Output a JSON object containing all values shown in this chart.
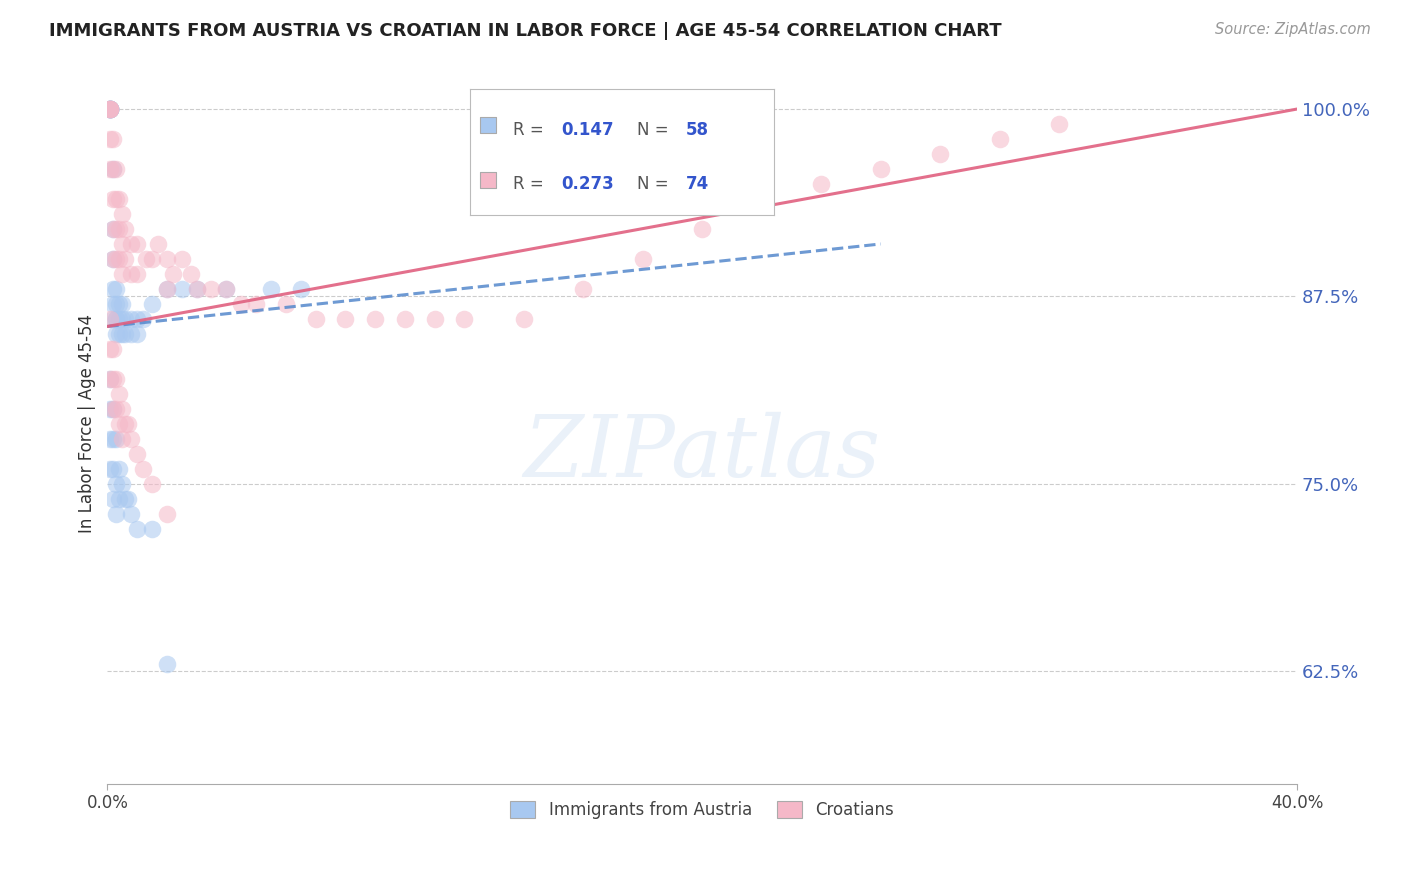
{
  "title": "IMMIGRANTS FROM AUSTRIA VS CROATIAN IN LABOR FORCE | AGE 45-54 CORRELATION CHART",
  "source": "Source: ZipAtlas.com",
  "ylabel": "In Labor Force | Age 45-54",
  "xlim": [
    0.0,
    0.4
  ],
  "ylim": [
    0.55,
    1.03
  ],
  "ytick_vals": [
    0.625,
    0.75,
    0.875,
    1.0
  ],
  "ytick_labels": [
    "62.5%",
    "75.0%",
    "87.5%",
    "100.0%"
  ],
  "xtick_vals": [
    0.0,
    0.4
  ],
  "xtick_labels": [
    "0.0%",
    "40.0%"
  ],
  "grid_color": "#cccccc",
  "background_color": "#ffffff",
  "austria_color": "#a8c8f0",
  "croatian_color": "#f5b8c8",
  "austria_line_color": "#5588cc",
  "croatian_line_color": "#e06080",
  "austria_R": 0.147,
  "austria_N": 58,
  "croatian_R": 0.273,
  "croatian_N": 74,
  "legend_label_austria": "Immigrants from Austria",
  "legend_label_croatian": "Croatians",
  "watermark_text": "ZIPatlas",
  "austria_x": [
    0.001,
    0.001,
    0.001,
    0.001,
    0.001,
    0.001,
    0.001,
    0.001,
    0.002,
    0.002,
    0.002,
    0.002,
    0.002,
    0.002,
    0.003,
    0.003,
    0.003,
    0.003,
    0.003,
    0.004,
    0.004,
    0.004,
    0.005,
    0.005,
    0.005,
    0.006,
    0.006,
    0.008,
    0.008,
    0.01,
    0.01,
    0.012,
    0.015,
    0.02,
    0.025,
    0.03,
    0.04,
    0.055,
    0.065,
    0.001,
    0.001,
    0.001,
    0.001,
    0.002,
    0.002,
    0.002,
    0.002,
    0.003,
    0.003,
    0.003,
    0.004,
    0.004,
    0.005,
    0.006,
    0.007,
    0.008,
    0.01,
    0.015,
    0.02
  ],
  "austria_y": [
    1.0,
    1.0,
    1.0,
    1.0,
    1.0,
    1.0,
    1.0,
    1.0,
    0.96,
    0.92,
    0.9,
    0.88,
    0.87,
    0.86,
    0.88,
    0.87,
    0.86,
    0.86,
    0.85,
    0.87,
    0.86,
    0.85,
    0.87,
    0.86,
    0.85,
    0.86,
    0.85,
    0.86,
    0.85,
    0.86,
    0.85,
    0.86,
    0.87,
    0.88,
    0.88,
    0.88,
    0.88,
    0.88,
    0.88,
    0.82,
    0.8,
    0.78,
    0.76,
    0.8,
    0.78,
    0.76,
    0.74,
    0.78,
    0.75,
    0.73,
    0.76,
    0.74,
    0.75,
    0.74,
    0.74,
    0.73,
    0.72,
    0.72,
    0.63
  ],
  "croatian_x": [
    0.001,
    0.001,
    0.001,
    0.001,
    0.001,
    0.001,
    0.002,
    0.002,
    0.002,
    0.002,
    0.002,
    0.003,
    0.003,
    0.003,
    0.003,
    0.004,
    0.004,
    0.004,
    0.005,
    0.005,
    0.005,
    0.006,
    0.006,
    0.008,
    0.008,
    0.01,
    0.01,
    0.013,
    0.015,
    0.017,
    0.02,
    0.02,
    0.022,
    0.025,
    0.028,
    0.03,
    0.035,
    0.04,
    0.045,
    0.05,
    0.06,
    0.07,
    0.08,
    0.09,
    0.1,
    0.11,
    0.12,
    0.14,
    0.16,
    0.18,
    0.2,
    0.22,
    0.24,
    0.26,
    0.28,
    0.3,
    0.32,
    0.001,
    0.001,
    0.001,
    0.002,
    0.002,
    0.002,
    0.003,
    0.003,
    0.004,
    0.004,
    0.005,
    0.005,
    0.006,
    0.007,
    0.008,
    0.01,
    0.012,
    0.015,
    0.02
  ],
  "croatian_y": [
    1.0,
    1.0,
    1.0,
    1.0,
    0.98,
    0.96,
    0.98,
    0.96,
    0.94,
    0.92,
    0.9,
    0.96,
    0.94,
    0.92,
    0.9,
    0.94,
    0.92,
    0.9,
    0.93,
    0.91,
    0.89,
    0.92,
    0.9,
    0.91,
    0.89,
    0.91,
    0.89,
    0.9,
    0.9,
    0.91,
    0.9,
    0.88,
    0.89,
    0.9,
    0.89,
    0.88,
    0.88,
    0.88,
    0.87,
    0.87,
    0.87,
    0.86,
    0.86,
    0.86,
    0.86,
    0.86,
    0.86,
    0.86,
    0.88,
    0.9,
    0.92,
    0.94,
    0.95,
    0.96,
    0.97,
    0.98,
    0.99,
    0.86,
    0.84,
    0.82,
    0.84,
    0.82,
    0.8,
    0.82,
    0.8,
    0.81,
    0.79,
    0.8,
    0.78,
    0.79,
    0.79,
    0.78,
    0.77,
    0.76,
    0.75,
    0.73
  ]
}
